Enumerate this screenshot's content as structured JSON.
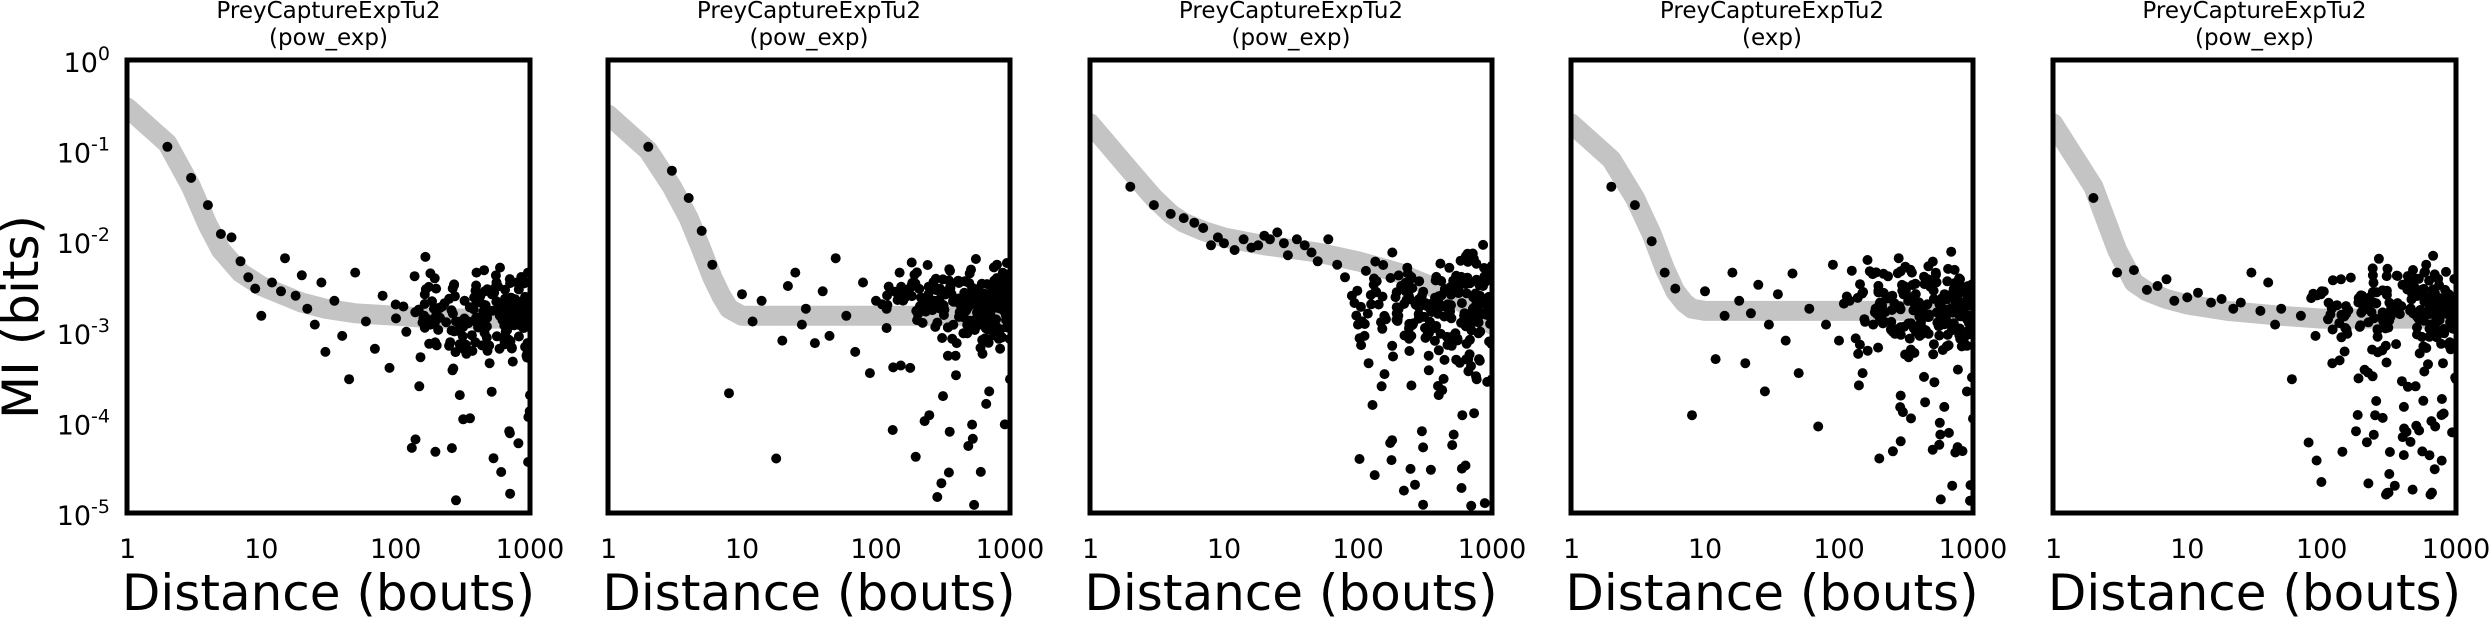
{
  "figure": {
    "ylabel": "MI (bits)"
  },
  "chart_data": [
    {
      "type": "scatter",
      "title": [
        "PreyCaptureExpTu2",
        "(pow_exp)"
      ],
      "xlabel": "Distance (bouts)",
      "ylabel": "MI (bits)",
      "xscale": "log",
      "yscale": "log",
      "xlim": [
        1,
        1000
      ],
      "ylim": [
        1e-05,
        1
      ],
      "xticks": [
        "1",
        "10",
        "100",
        "1000"
      ],
      "yticks": [
        "10-5",
        "10-4",
        "10-3",
        "10-2",
        "10-1",
        "100"
      ],
      "fit": {
        "x": [
          1,
          2,
          3,
          4,
          5,
          7,
          10,
          15,
          20,
          30,
          50,
          100,
          200,
          500,
          1000
        ],
        "y": [
          0.3,
          0.12,
          0.04,
          0.015,
          0.008,
          0.0045,
          0.0032,
          0.0025,
          0.0021,
          0.0018,
          0.0016,
          0.0015,
          0.0014,
          0.0014,
          0.0014
        ]
      },
      "points": [
        [
          2,
          0.11
        ],
        [
          3,
          0.05
        ],
        [
          4,
          0.025
        ],
        [
          5,
          0.012
        ],
        [
          6,
          0.011
        ],
        [
          7,
          0.006
        ],
        [
          8,
          0.004
        ],
        [
          9,
          0.003
        ],
        [
          10,
          0.0015
        ],
        [
          12,
          0.0035
        ],
        [
          14,
          0.0028
        ],
        [
          15,
          0.0065
        ],
        [
          18,
          0.0025
        ],
        [
          20,
          0.0042
        ],
        [
          22,
          0.0018
        ],
        [
          25,
          0.0012
        ],
        [
          28,
          0.0035
        ],
        [
          30,
          0.0006
        ],
        [
          35,
          0.0022
        ],
        [
          40,
          0.0009
        ],
        [
          45,
          0.0003
        ],
        [
          50,
          0.0045
        ],
        [
          60,
          0.0013
        ],
        [
          70,
          0.00065
        ],
        [
          80,
          0.0025
        ],
        [
          90,
          0.0004
        ],
        [
          100,
          0.002
        ],
        [
          120,
          0.001
        ],
        [
          150,
          0.00025
        ],
        [
          180,
          0.0013
        ],
        [
          200,
          0.003
        ],
        [
          250,
          0.0007
        ],
        [
          300,
          0.0002
        ],
        [
          400,
          0.0045
        ],
        [
          500,
          0.00045
        ],
        [
          600,
          0.0015
        ],
        [
          700,
          8e-05
        ],
        [
          800,
          0.0035
        ],
        [
          900,
          0.0011
        ],
        [
          1000,
          0.0002
        ]
      ],
      "cloud": {
        "xrange": [
          100,
          1000
        ],
        "ylog_center": -2.8,
        "ylog_spread": 0.32,
        "count": 220
      }
    },
    {
      "type": "scatter",
      "title": [
        "PreyCaptureExpTu2",
        "(pow_exp)"
      ],
      "xlabel": "Distance (bouts)",
      "ylabel": "",
      "xscale": "log",
      "yscale": "log",
      "xlim": [
        1,
        1000
      ],
      "ylim": [
        1e-05,
        1
      ],
      "xticks": [
        "1",
        "10",
        "100",
        "1000"
      ],
      "yticks": [],
      "fit": {
        "x": [
          1,
          2,
          3,
          4,
          5,
          6,
          7,
          8,
          10,
          15,
          20,
          50,
          100,
          300,
          1000
        ],
        "y": [
          0.25,
          0.1,
          0.04,
          0.018,
          0.008,
          0.004,
          0.0025,
          0.0018,
          0.0015,
          0.0015,
          0.0015,
          0.0015,
          0.0015,
          0.0015,
          0.0015
        ]
      },
      "points": [
        [
          2,
          0.11
        ],
        [
          3,
          0.06
        ],
        [
          4,
          0.03
        ],
        [
          5,
          0.013
        ],
        [
          6,
          0.0055
        ],
        [
          8,
          0.00021
        ],
        [
          10,
          0.0026
        ],
        [
          12,
          0.0013
        ],
        [
          14,
          0.0022
        ],
        [
          18,
          4e-05
        ],
        [
          20,
          0.0008
        ],
        [
          22,
          0.0032
        ],
        [
          25,
          0.0045
        ],
        [
          28,
          0.0012
        ],
        [
          30,
          0.0018
        ],
        [
          35,
          0.00075
        ],
        [
          40,
          0.0028
        ],
        [
          45,
          0.0009
        ],
        [
          50,
          0.0065
        ],
        [
          60,
          0.0015
        ],
        [
          70,
          0.0006
        ],
        [
          80,
          0.0035
        ],
        [
          90,
          0.00035
        ],
        [
          100,
          0.0022
        ],
        [
          120,
          0.0011
        ],
        [
          150,
          0.0045
        ],
        [
          180,
          0.0004
        ],
        [
          200,
          0.0017
        ],
        [
          250,
          0.00012
        ],
        [
          300,
          0.003
        ],
        [
          350,
          2.8e-05
        ],
        [
          400,
          0.00075
        ],
        [
          500,
          0.0044
        ],
        [
          600,
          0.0013
        ],
        [
          700,
          0.00022
        ],
        [
          800,
          0.0055
        ],
        [
          900,
          0.0018
        ],
        [
          1000,
          0.0003
        ]
      ],
      "cloud": {
        "xrange": [
          100,
          1000
        ],
        "ylog_center": -2.7,
        "ylog_spread": 0.3,
        "count": 220
      }
    },
    {
      "type": "scatter",
      "title": [
        "PreyCaptureExpTu2",
        "(pow_exp)"
      ],
      "xlabel": "Distance (bouts)",
      "ylabel": "",
      "xscale": "log",
      "yscale": "log",
      "xlim": [
        1,
        1000
      ],
      "ylim": [
        1e-05,
        1
      ],
      "xticks": [
        "1",
        "10",
        "100",
        "1000"
      ],
      "yticks": [],
      "fit": {
        "x": [
          1,
          2,
          3,
          4,
          5,
          7,
          10,
          20,
          50,
          100,
          200,
          300,
          500,
          700,
          1000
        ],
        "y": [
          0.2,
          0.06,
          0.03,
          0.02,
          0.016,
          0.013,
          0.011,
          0.009,
          0.0075,
          0.006,
          0.0045,
          0.0035,
          0.0025,
          0.0018,
          0.0012
        ]
      },
      "points": [
        [
          2,
          0.04
        ],
        [
          3,
          0.025
        ],
        [
          4,
          0.02
        ],
        [
          5,
          0.018
        ],
        [
          6,
          0.016
        ],
        [
          7,
          0.014
        ],
        [
          8,
          0.009
        ],
        [
          9,
          0.011
        ],
        [
          10,
          0.0095
        ],
        [
          12,
          0.008
        ],
        [
          14,
          0.0105
        ],
        [
          16,
          0.0085
        ],
        [
          18,
          0.009
        ],
        [
          20,
          0.0115
        ],
        [
          22,
          0.0105
        ],
        [
          25,
          0.0125
        ],
        [
          28,
          0.0095
        ],
        [
          30,
          0.007
        ],
        [
          35,
          0.0105
        ],
        [
          40,
          0.009
        ],
        [
          45,
          0.0075
        ],
        [
          50,
          0.006
        ],
        [
          60,
          0.0105
        ],
        [
          70,
          0.0055
        ],
        [
          80,
          0.004
        ],
        [
          90,
          0.0025
        ],
        [
          100,
          0.0012
        ],
        [
          120,
          0.00045
        ],
        [
          150,
          0.00025
        ],
        [
          180,
          0.0007
        ],
        [
          200,
          0.0015
        ],
        [
          250,
          0.0009
        ],
        [
          300,
          8e-05
        ],
        [
          350,
          3e-05
        ],
        [
          400,
          0.0002
        ],
        [
          500,
          0.0007
        ],
        [
          600,
          0.00012
        ],
        [
          700,
          1.2e-05
        ],
        [
          800,
          0.0005
        ],
        [
          900,
          0.0016
        ],
        [
          1000,
          0.0003
        ]
      ],
      "cloud": {
        "xrange": [
          80,
          1000
        ],
        "ylog_center": -2.75,
        "ylog_spread": 0.38,
        "count": 240
      }
    },
    {
      "type": "scatter",
      "title": [
        "PreyCaptureExpTu2",
        "(exp)"
      ],
      "xlabel": "Distance (bouts)",
      "ylabel": "",
      "xscale": "log",
      "yscale": "log",
      "xlim": [
        1,
        1000
      ],
      "ylim": [
        1e-05,
        1
      ],
      "xticks": [
        "1",
        "10",
        "100",
        "1000"
      ],
      "yticks": [],
      "fit": {
        "x": [
          1,
          2,
          3,
          4,
          5,
          6,
          7,
          8,
          10,
          15,
          20,
          50,
          100,
          300,
          1000
        ],
        "y": [
          0.2,
          0.08,
          0.03,
          0.012,
          0.005,
          0.0028,
          0.0021,
          0.0018,
          0.0017,
          0.0017,
          0.0017,
          0.0017,
          0.0017,
          0.0017,
          0.0017
        ]
      },
      "points": [
        [
          2,
          0.04
        ],
        [
          3,
          0.025
        ],
        [
          4,
          0.01
        ],
        [
          5,
          0.0045
        ],
        [
          6,
          0.003
        ],
        [
          8,
          0.00012
        ],
        [
          10,
          0.0028
        ],
        [
          12,
          0.0005
        ],
        [
          14,
          0.0015
        ],
        [
          16,
          0.0045
        ],
        [
          18,
          0.0022
        ],
        [
          20,
          0.00045
        ],
        [
          22,
          0.0016
        ],
        [
          25,
          0.0033
        ],
        [
          28,
          0.00022
        ],
        [
          30,
          0.0012
        ],
        [
          35,
          0.0026
        ],
        [
          40,
          0.0008
        ],
        [
          45,
          0.0044
        ],
        [
          50,
          0.00035
        ],
        [
          60,
          0.0018
        ],
        [
          70,
          9e-05
        ],
        [
          80,
          0.0012
        ],
        [
          90,
          0.0055
        ],
        [
          100,
          0.0008
        ],
        [
          120,
          0.0022
        ],
        [
          150,
          0.00035
        ],
        [
          180,
          0.0012
        ],
        [
          200,
          4e-05
        ],
        [
          250,
          0.0025
        ],
        [
          300,
          0.00013
        ],
        [
          350,
          0.0045
        ],
        [
          400,
          0.0009
        ],
        [
          500,
          5e-05
        ],
        [
          600,
          0.0018
        ],
        [
          700,
          2e-05
        ],
        [
          800,
          0.0038
        ],
        [
          900,
          0.0007
        ],
        [
          1000,
          0.00011
        ]
      ],
      "cloud": {
        "xrange": [
          100,
          1000
        ],
        "ylog_center": -2.75,
        "ylog_spread": 0.33,
        "count": 220
      }
    },
    {
      "type": "scatter",
      "title": [
        "PreyCaptureExpTu2",
        "(pow_exp)"
      ],
      "xlabel": "Distance (bouts)",
      "ylabel": "",
      "xscale": "log",
      "yscale": "log",
      "xlim": [
        1,
        1000
      ],
      "ylim": [
        1e-05,
        1
      ],
      "xticks": [
        "1",
        "10",
        "100",
        "1000"
      ],
      "yticks": [],
      "fit": {
        "x": [
          1,
          2,
          3,
          4,
          5,
          7,
          10,
          20,
          50,
          100,
          200,
          500,
          1000
        ],
        "y": [
          0.2,
          0.04,
          0.008,
          0.0035,
          0.0028,
          0.0023,
          0.002,
          0.0017,
          0.0015,
          0.0014,
          0.0014,
          0.0014,
          0.0014
        ]
      },
      "points": [
        [
          2,
          0.03
        ],
        [
          3,
          0.0045
        ],
        [
          4,
          0.0048
        ],
        [
          5,
          0.0029
        ],
        [
          6,
          0.0032
        ],
        [
          7,
          0.0038
        ],
        [
          8,
          0.0022
        ],
        [
          10,
          0.0024
        ],
        [
          12,
          0.0027
        ],
        [
          15,
          0.0021
        ],
        [
          18,
          0.0023
        ],
        [
          22,
          0.0018
        ],
        [
          25,
          0.0021
        ],
        [
          30,
          0.0045
        ],
        [
          35,
          0.0017
        ],
        [
          40,
          0.0035
        ],
        [
          45,
          0.0012
        ],
        [
          50,
          0.0018
        ],
        [
          60,
          0.0003
        ],
        [
          70,
          0.0015
        ],
        [
          80,
          6e-05
        ],
        [
          90,
          0.0009
        ],
        [
          100,
          0.0028
        ],
        [
          120,
          0.00045
        ],
        [
          150,
          0.0011
        ],
        [
          180,
          8e-05
        ],
        [
          200,
          0.0025
        ],
        [
          250,
          0.00012
        ],
        [
          300,
          0.0007
        ],
        [
          350,
          2e-05
        ],
        [
          400,
          0.0033
        ],
        [
          500,
          0.00025
        ],
        [
          600,
          0.0055
        ],
        [
          700,
          9e-05
        ],
        [
          800,
          0.00045
        ],
        [
          900,
          0.0017
        ],
        [
          1000,
          0.0003
        ]
      ],
      "cloud": {
        "xrange": [
          80,
          1000
        ],
        "ylog_center": -2.75,
        "ylog_spread": 0.3,
        "count": 230
      }
    }
  ]
}
